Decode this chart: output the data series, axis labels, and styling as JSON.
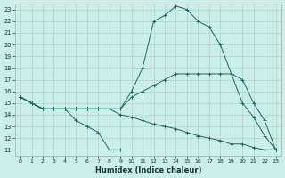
{
  "xlabel": "Humidex (Indice chaleur)",
  "bg_color": "#cceee8",
  "line_color": "#1a6b5a",
  "grid_color": "#aad4cc",
  "xlim": [
    -0.5,
    23.5
  ],
  "ylim": [
    10.5,
    23.5
  ],
  "xticks": [
    0,
    1,
    2,
    3,
    4,
    5,
    6,
    7,
    8,
    9,
    10,
    11,
    12,
    13,
    14,
    15,
    16,
    17,
    18,
    19,
    20,
    21,
    22,
    23
  ],
  "yticks": [
    11,
    12,
    13,
    14,
    15,
    16,
    17,
    18,
    19,
    20,
    21,
    22,
    23
  ],
  "lines": [
    {
      "x": [
        0,
        1,
        2,
        3,
        4,
        5,
        6,
        7,
        8,
        9,
        10,
        11,
        12,
        13,
        14,
        15,
        16,
        17,
        18,
        19,
        20,
        21,
        22,
        23
      ],
      "y": [
        15.5,
        15.0,
        14.5,
        14.5,
        14.5,
        14.5,
        14.5,
        14.5,
        14.5,
        14.5,
        16.0,
        18.0,
        22.0,
        22.5,
        23.3,
        23.0,
        22.0,
        21.5,
        20.0,
        17.5,
        15.0,
        13.8,
        12.2,
        11.0
      ]
    },
    {
      "x": [
        0,
        1,
        2,
        3,
        4,
        5,
        6,
        7,
        8,
        9,
        10,
        11,
        12,
        13,
        14,
        15,
        16,
        17,
        18,
        19,
        20,
        21,
        22,
        23
      ],
      "y": [
        15.5,
        15.0,
        14.5,
        14.5,
        14.5,
        14.5,
        14.5,
        14.5,
        14.5,
        14.5,
        15.5,
        16.0,
        16.5,
        17.0,
        17.5,
        17.5,
        17.5,
        17.5,
        17.5,
        17.5,
        17.0,
        15.0,
        13.5,
        11.0
      ]
    },
    {
      "x": [
        0,
        1,
        2,
        3,
        4,
        5,
        6,
        7,
        8,
        9
      ],
      "y": [
        15.5,
        15.0,
        14.5,
        14.5,
        14.5,
        13.5,
        13.0,
        12.5,
        11.0,
        11.0
      ]
    },
    {
      "x": [
        0,
        1,
        2,
        3,
        4,
        5,
        6,
        7,
        8,
        9,
        10,
        11,
        12,
        13,
        14,
        15,
        16,
        17,
        18,
        19,
        20,
        21,
        22,
        23
      ],
      "y": [
        15.5,
        15.0,
        14.5,
        14.5,
        14.5,
        14.5,
        14.5,
        14.5,
        14.5,
        14.0,
        13.8,
        13.5,
        13.2,
        13.0,
        12.8,
        12.5,
        12.2,
        12.0,
        11.8,
        11.5,
        11.5,
        11.2,
        11.0,
        11.0
      ]
    }
  ]
}
